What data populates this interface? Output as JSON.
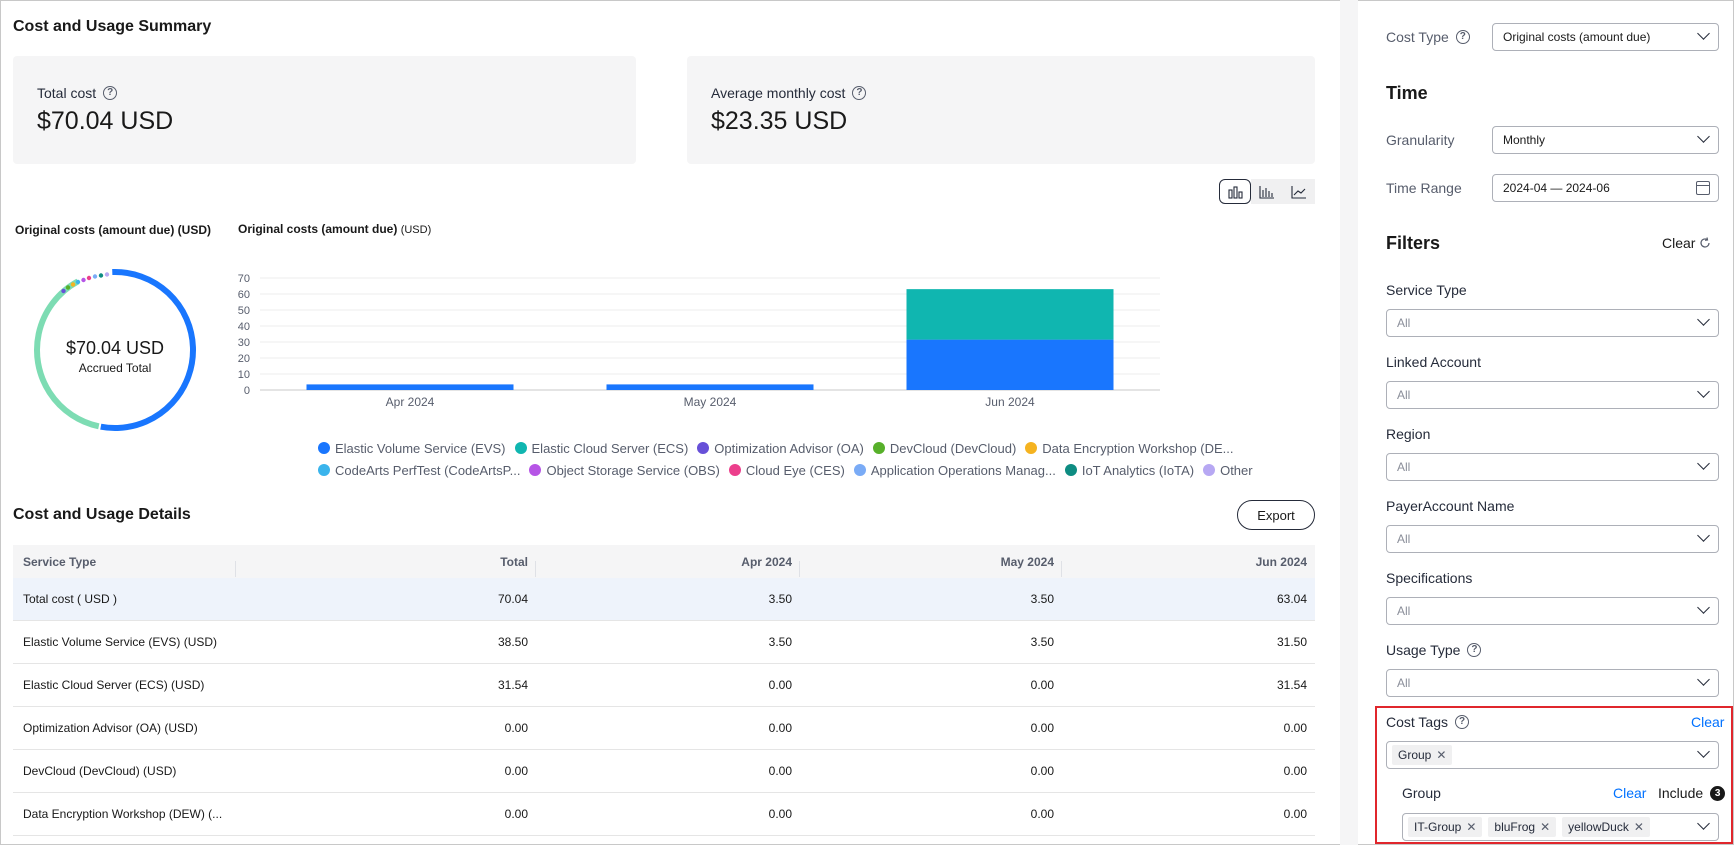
{
  "summary": {
    "title": "Cost and Usage Summary",
    "total_cost_label": "Total cost",
    "total_cost_value": "$70.04 USD",
    "avg_cost_label": "Average monthly cost",
    "avg_cost_value": "$23.35 USD"
  },
  "donut": {
    "title": "Original costs (amount due) (USD)",
    "center_amount": "$70.04 USD",
    "center_label": "Accrued Total"
  },
  "chart_data": {
    "type": "bar",
    "stacked": true,
    "title": "Original costs (amount due)",
    "title_unit": "(USD)",
    "categories": [
      "Apr 2024",
      "May 2024",
      "Jun 2024"
    ],
    "ylim": [
      0,
      70
    ],
    "yticks": [
      0,
      10,
      20,
      30,
      40,
      50,
      60,
      70
    ],
    "grid": true,
    "series": [
      {
        "name": "Elastic Volume Service (EVS)",
        "color": "#1976fe",
        "values": [
          3.5,
          3.5,
          31.5
        ]
      },
      {
        "name": "Elastic Cloud Server (ECS)",
        "color": "#10b6b0",
        "values": [
          0,
          0,
          31.54
        ]
      }
    ]
  },
  "legend": {
    "row1": [
      {
        "label": "Elastic Volume Service (EVS)",
        "color": "#1976fe"
      },
      {
        "label": "Elastic Cloud Server (ECS)",
        "color": "#10b6b0"
      },
      {
        "label": "Optimization Advisor (OA)",
        "color": "#6750d8"
      },
      {
        "label": "DevCloud (DevCloud)",
        "color": "#57b02a"
      },
      {
        "label": "Data Encryption Workshop (DE...",
        "color": "#f5b320"
      }
    ],
    "row2": [
      {
        "label": "CodeArts PerfTest (CodeArtsP...",
        "color": "#3ab4ec"
      },
      {
        "label": "Object Storage Service (OBS)",
        "color": "#b655e6"
      },
      {
        "label": "Cloud Eye (CES)",
        "color": "#ec3f8c"
      },
      {
        "label": "Application Operations Manag...",
        "color": "#7aabf6"
      },
      {
        "label": "IoT Analytics (IoTA)",
        "color": "#0e8c82"
      },
      {
        "label": "Other",
        "color": "#b7a8f3"
      }
    ]
  },
  "details": {
    "title": "Cost and Usage Details",
    "export_label": "Export",
    "columns": [
      "Service Type",
      "Total",
      "Apr 2024",
      "May 2024",
      "Jun 2024"
    ],
    "rows": [
      [
        "Total cost ( USD )",
        "70.04",
        "3.50",
        "3.50",
        "63.04"
      ],
      [
        "Elastic Volume Service (EVS) (USD)",
        "38.50",
        "3.50",
        "3.50",
        "31.50"
      ],
      [
        "Elastic Cloud Server (ECS) (USD)",
        "31.54",
        "0.00",
        "0.00",
        "31.54"
      ],
      [
        "Optimization Advisor (OA) (USD)",
        "0.00",
        "0.00",
        "0.00",
        "0.00"
      ],
      [
        "DevCloud (DevCloud) (USD)",
        "0.00",
        "0.00",
        "0.00",
        "0.00"
      ],
      [
        "Data Encryption Workshop (DEW) (...",
        "0.00",
        "0.00",
        "0.00",
        "0.00"
      ]
    ]
  },
  "panel": {
    "cost_type_label": "Cost Type",
    "cost_type_value": "Original costs (amount due)",
    "time_heading": "Time",
    "granularity_label": "Granularity",
    "granularity_value": "Monthly",
    "time_range_label": "Time Range",
    "time_range_value": "2024-04 — 2024-06",
    "filters_heading": "Filters",
    "filters_clear": "Clear",
    "service_type_label": "Service Type",
    "linked_account_label": "Linked Account",
    "region_label": "Region",
    "payer_account_label": "PayerAccount Name",
    "specifications_label": "Specifications",
    "usage_type_label": "Usage Type",
    "all_value": "All",
    "cost_tags_label": "Cost Tags",
    "cost_tags_clear": "Clear",
    "cost_tags_chip": "Group",
    "group_label": "Group",
    "group_clear": "Clear",
    "group_include": "Include",
    "group_count": "3",
    "group_chips": [
      "IT-Group",
      "bluFrog",
      "yellowDuck"
    ]
  }
}
